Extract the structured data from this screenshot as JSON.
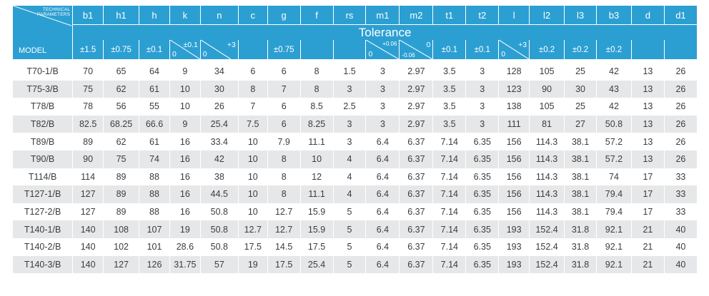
{
  "header": {
    "technical_parameters": "TECHNICAL\nPARAMETERS",
    "model_label": "MODEL",
    "tolerance_label": "Tolerance",
    "columns": [
      "b1",
      "h1",
      "h",
      "k",
      "n",
      "c",
      "g",
      "f",
      "rs",
      "m1",
      "m2",
      "t1",
      "t2",
      "l",
      "l2",
      "l3",
      "b3",
      "d",
      "d1"
    ],
    "tolerances": {
      "b1": "±1.5",
      "h1": "±0.75",
      "h": "±0.1",
      "k_upper": "±0.1",
      "k_lower": "0",
      "n_upper": "+3",
      "n_lower": "0",
      "c": "",
      "g": "±0.75",
      "f": "",
      "rs": "",
      "m1_upper": "+0.06",
      "m1_lower": "0",
      "m2_upper": "0",
      "m2_lower": "-0.06",
      "t1": "±0.1",
      "t2": "±0.1",
      "l_upper": "+3",
      "l_lower": "0",
      "l2": "±0.2",
      "l3": "±0.2",
      "b3": "±0.2",
      "d": "",
      "d1": ""
    }
  },
  "rows": [
    [
      "T70-1/B",
      "70",
      "65",
      "64",
      "9",
      "34",
      "6",
      "6",
      "8",
      "1.5",
      "3",
      "2.97",
      "3.5",
      "3",
      "128",
      "105",
      "25",
      "42",
      "13",
      "26"
    ],
    [
      "T75-3/B",
      "75",
      "62",
      "61",
      "10",
      "30",
      "8",
      "7",
      "8",
      "3",
      "3",
      "2.97",
      "3.5",
      "3",
      "123",
      "90",
      "30",
      "43",
      "13",
      "26"
    ],
    [
      "T78/B",
      "78",
      "56",
      "55",
      "10",
      "26",
      "7",
      "6",
      "8.5",
      "2.5",
      "3",
      "2.97",
      "3.5",
      "3",
      "138",
      "105",
      "25",
      "42",
      "13",
      "26"
    ],
    [
      "T82/B",
      "82.5",
      "68.25",
      "66.6",
      "9",
      "25.4",
      "7.5",
      "6",
      "8.25",
      "3",
      "3",
      "2.97",
      "3.5",
      "3",
      "111",
      "81",
      "27",
      "50.8",
      "13",
      "26"
    ],
    [
      "T89/B",
      "89",
      "62",
      "61",
      "16",
      "33.4",
      "10",
      "7.9",
      "11.1",
      "3",
      "6.4",
      "6.37",
      "7.14",
      "6.35",
      "156",
      "114.3",
      "38.1",
      "57.2",
      "13",
      "26"
    ],
    [
      "T90/B",
      "90",
      "75",
      "74",
      "16",
      "42",
      "10",
      "8",
      "10",
      "4",
      "6.4",
      "6.37",
      "7.14",
      "6.35",
      "156",
      "114.3",
      "38.1",
      "57.2",
      "13",
      "26"
    ],
    [
      "T114/B",
      "114",
      "89",
      "88",
      "16",
      "38",
      "10",
      "8",
      "12",
      "4",
      "6.4",
      "6.37",
      "7.14",
      "6.35",
      "156",
      "114.3",
      "38.1",
      "74",
      "17",
      "33"
    ],
    [
      "T127-1/B",
      "127",
      "89",
      "88",
      "16",
      "44.5",
      "10",
      "8",
      "11.1",
      "4",
      "6.4",
      "6.37",
      "7.14",
      "6.35",
      "156",
      "114.3",
      "38.1",
      "79.4",
      "17",
      "33"
    ],
    [
      "T127-2/B",
      "127",
      "89",
      "88",
      "16",
      "50.8",
      "10",
      "12.7",
      "15.9",
      "5",
      "6.4",
      "6.37",
      "7.14",
      "6.35",
      "156",
      "114.3",
      "38.1",
      "79.4",
      "17",
      "33"
    ],
    [
      "T140-1/B",
      "140",
      "108",
      "107",
      "19",
      "50.8",
      "12.7",
      "12.7",
      "15.9",
      "5",
      "6.4",
      "6.37",
      "7.14",
      "6.35",
      "193",
      "152.4",
      "31.8",
      "92.1",
      "21",
      "40"
    ],
    [
      "T140-2/B",
      "140",
      "102",
      "101",
      "28.6",
      "50.8",
      "17.5",
      "14.5",
      "17.5",
      "5",
      "6.4",
      "6.37",
      "7.14",
      "6.35",
      "193",
      "152.4",
      "31.8",
      "92.1",
      "21",
      "40"
    ],
    [
      "T140-3/B",
      "140",
      "127",
      "126",
      "31.75",
      "57",
      "19",
      "17.5",
      "25.4",
      "5",
      "6.4",
      "6.37",
      "7.14",
      "6.35",
      "193",
      "152.4",
      "31.8",
      "92.1",
      "21",
      "40"
    ]
  ],
  "colors": {
    "header_bg": "#2c9fd2",
    "header_text": "#ffffff",
    "row_alt_bg": "#e6e7e9",
    "cell_text": "#3c3c3c"
  }
}
